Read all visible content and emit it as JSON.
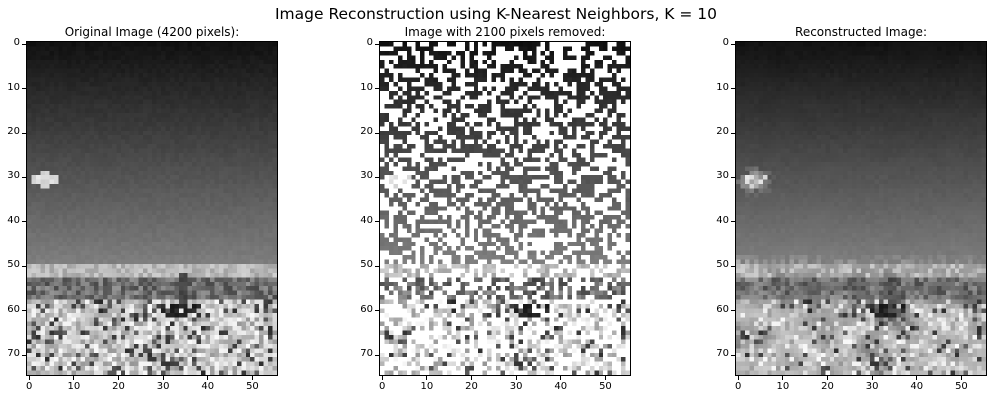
{
  "suptitle": "Image Reconstruction using K-Nearest Neighbors, K = 10",
  "chart_data": [
    {
      "type": "heatmap",
      "title": "Original Image (4200 pixels):",
      "colormap": "gray",
      "image_shape": [
        75,
        56
      ],
      "xlim": [
        0,
        55
      ],
      "ylim": [
        75,
        0
      ],
      "xticks": [
        0,
        10,
        20,
        30,
        40,
        50
      ],
      "yticks": [
        0,
        10,
        20,
        30,
        40,
        50,
        60,
        70
      ],
      "content": "grayscale beach/sky photo: dark sky at top, cloud near (x=3,y=30), horizon near y=52, bright textured sand below"
    },
    {
      "type": "heatmap",
      "title": "Image with 2100 pixels removed:",
      "colormap": "gray",
      "image_shape": [
        75,
        56
      ],
      "removed_pixels": 2100,
      "xlim": [
        0,
        55
      ],
      "ylim": [
        75,
        0
      ],
      "xticks": [
        0,
        10,
        20,
        30,
        40,
        50
      ],
      "yticks": [
        0,
        10,
        20,
        30,
        40,
        50,
        60,
        70
      ]
    },
    {
      "type": "heatmap",
      "title": "Reconstructed Image:",
      "colormap": "gray",
      "image_shape": [
        75,
        56
      ],
      "xlim": [
        0,
        55
      ],
      "ylim": [
        75,
        0
      ],
      "xticks": [
        0,
        10,
        20,
        30,
        40,
        50
      ],
      "yticks": [
        0,
        10,
        20,
        30,
        40,
        50,
        60,
        70
      ]
    }
  ]
}
